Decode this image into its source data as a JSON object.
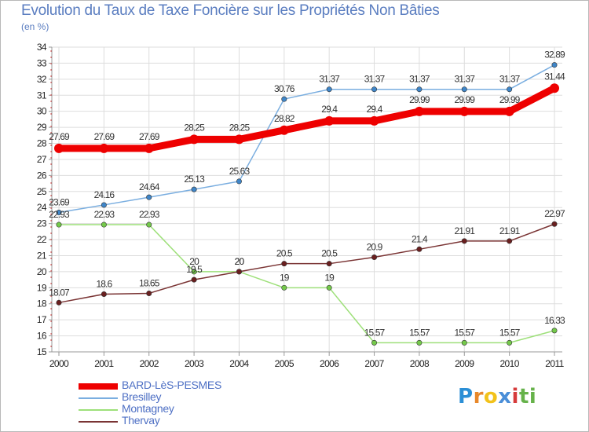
{
  "title": "Evolution du Taux de Taxe Foncière sur les Propriétés Non Bâties",
  "unit": "(en %)",
  "logo": {
    "text": "Proxiti",
    "letters": [
      "P",
      "r",
      "o",
      "x",
      "i",
      "t",
      "i"
    ],
    "colors": [
      "#2b8fd6",
      "#e8882a",
      "#f2c21b",
      "#4a8ed8",
      "#d63b3b",
      "#66b24a",
      "#66b24a"
    ]
  },
  "chart_data": {
    "type": "line",
    "title": "Evolution du Taux de Taxe Foncière sur les Propriétés Non Bâties",
    "ylabel": "(en %)",
    "xlabel": "",
    "x": [
      "2000",
      "2001",
      "2002",
      "2003",
      "2004",
      "2005",
      "2006",
      "2007",
      "2008",
      "2009",
      "2010",
      "2011"
    ],
    "ylim": [
      15,
      34
    ],
    "yticks": [
      15,
      16,
      17,
      18,
      19,
      20,
      21,
      22,
      23,
      24,
      25,
      26,
      27,
      28,
      29,
      30,
      31,
      32,
      33,
      34
    ],
    "grid": true,
    "legend_position": "bottom-left",
    "series": [
      {
        "name": "BARD-LèS-PESMES",
        "color": "#ee0000",
        "emphasis": true,
        "values": [
          27.69,
          27.69,
          27.69,
          28.25,
          28.25,
          28.82,
          29.4,
          29.4,
          29.99,
          29.99,
          29.99,
          31.44
        ],
        "labels": [
          "27.69",
          "27.69",
          "27.69",
          "28.25",
          "28.25",
          "28.82",
          "29.4",
          "29.4",
          "29.99",
          "29.99",
          "29.99",
          "31.44"
        ]
      },
      {
        "name": "Bresilley",
        "color": "#7aaee0",
        "marker": "#3f86c9",
        "emphasis": false,
        "values": [
          23.69,
          24.16,
          24.64,
          25.13,
          25.63,
          30.76,
          31.37,
          31.37,
          31.37,
          31.37,
          31.37,
          32.89
        ],
        "labels": [
          "23.69",
          "24.16",
          "24.64",
          "25.13",
          "25.63",
          "30.76",
          "31.37",
          "31.37",
          "31.37",
          "31.37",
          "31.37",
          "32.89"
        ]
      },
      {
        "name": "Montagney",
        "color": "#9ee07a",
        "marker": "#74c94a",
        "emphasis": false,
        "values": [
          22.93,
          22.93,
          22.93,
          20,
          20,
          19,
          19,
          15.57,
          15.57,
          15.57,
          15.57,
          16.33
        ],
        "labels": [
          "22.93",
          "22.93",
          "22.93",
          "20",
          "20",
          "19",
          "19",
          "15.57",
          "15.57",
          "15.57",
          "15.57",
          "16.33"
        ]
      },
      {
        "name": "Thervay",
        "color": "#7a3434",
        "marker": "#6a1f1f",
        "emphasis": false,
        "values": [
          18.07,
          18.6,
          18.65,
          19.5,
          20,
          20.5,
          20.5,
          20.9,
          21.4,
          21.91,
          21.91,
          22.97
        ],
        "labels": [
          "18.07",
          "18.6",
          "18.65",
          "19.5",
          "20",
          "20.5",
          "20.5",
          "20.9",
          "21.4",
          "21.91",
          "21.91",
          "22.97"
        ]
      }
    ]
  }
}
